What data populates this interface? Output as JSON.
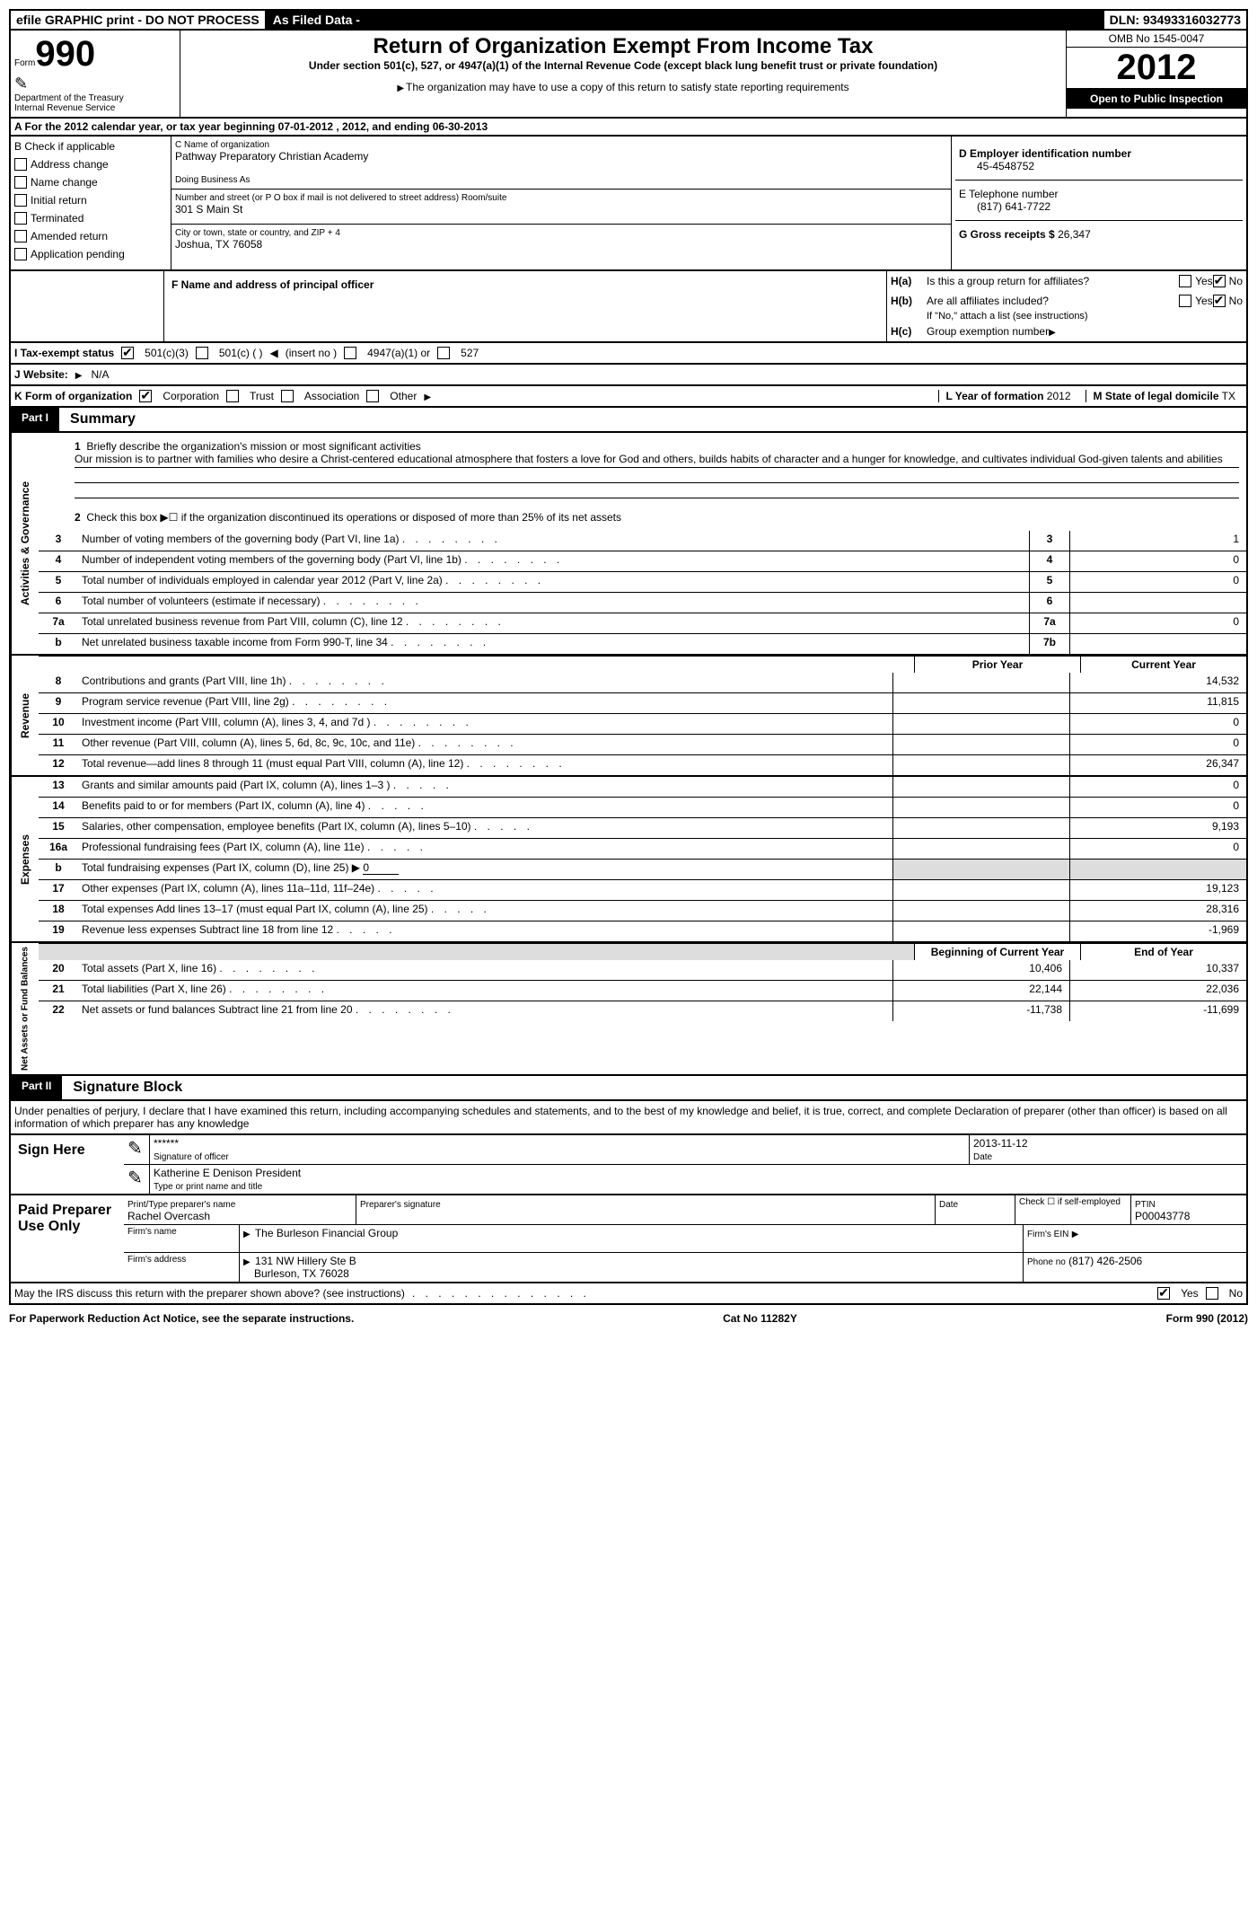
{
  "header": {
    "efile": "efile GRAPHIC print - DO NOT PROCESS",
    "asFiled": "As Filed Data -",
    "dln": "DLN: 93493316032773"
  },
  "topLeft": {
    "formLabel": "Form",
    "formNum": "990",
    "dept1": "Department of the Treasury",
    "dept2": "Internal Revenue Service"
  },
  "topCenter": {
    "title": "Return of Organization Exempt From Income Tax",
    "sub1": "Under section 501(c), 527, or 4947(a)(1) of the Internal Revenue Code (except black lung benefit trust or private foundation)",
    "sub2": "The organization may have to use a copy of this return to satisfy state reporting requirements"
  },
  "topRight": {
    "omb": "OMB No 1545-0047",
    "year": "2012",
    "open": "Open to Public Inspection"
  },
  "sectionA": "A  For the 2012 calendar year, or tax year beginning 07-01-2012    , 2012, and ending 06-30-2013",
  "colB": {
    "label": "B  Check if applicable",
    "items": [
      "Address change",
      "Name change",
      "Initial return",
      "Terminated",
      "Amended return",
      "Application pending"
    ]
  },
  "colC": {
    "nameLabel": "C Name of organization",
    "name": "Pathway Preparatory Christian Academy",
    "dbaLabel": "Doing Business As",
    "dba": "",
    "streetLabel": "Number and street (or P O  box if mail is not delivered to street address)  Room/suite",
    "street": "301 S Main St",
    "cityLabel": "City or town, state or country, and ZIP + 4",
    "city": "Joshua, TX  76058",
    "fLabel": "F  Name and address of principal officer"
  },
  "colD": {
    "einLabel": "D Employer identification number",
    "ein": "45-4548752",
    "telLabel": "E Telephone number",
    "tel": "(817) 641-7722",
    "grossLabel": "G Gross receipts $",
    "gross": "26,347"
  },
  "colH": {
    "haLabel": "H(a)",
    "haText": "Is this a group return for affiliates?",
    "hbLabel": "H(b)",
    "hbText": "Are all affiliates included?",
    "hbNote": "If \"No,\" attach a list  (see instructions)",
    "hcLabel": "H(c)",
    "hcText": "Group exemption number"
  },
  "rowI": {
    "label": "I  Tax-exempt status",
    "opts": [
      "501(c)(3)",
      "501(c) (  )",
      "(insert no )",
      "4947(a)(1) or",
      "527"
    ]
  },
  "rowJ": {
    "label": "J  Website:",
    "val": "N/A"
  },
  "rowK": {
    "label": "K Form of organization",
    "opts": [
      "Corporation",
      "Trust",
      "Association",
      "Other"
    ],
    "yearLabel": "L Year of formation",
    "year": "2012",
    "stateLabel": "M State of legal domicile",
    "state": "TX"
  },
  "part1": {
    "tab": "Part I",
    "title": "Summary"
  },
  "summary": {
    "l1": "Briefly describe the organization's mission or most significant activities",
    "l1text": "Our mission is to partner with families who desire a Christ-centered educational atmosphere that fosters a love for God and others, builds habits of character and a hunger for knowledge, and cultivates individual God-given talents and abilities",
    "l2": "Check this box ▶☐ if the organization discontinued its operations or disposed of more than 25% of its net assets",
    "lines_gov": [
      {
        "n": "3",
        "d": "Number of voting members of the governing body (Part VI, line 1a)",
        "b": "3",
        "v": "1"
      },
      {
        "n": "4",
        "d": "Number of independent voting members of the governing body (Part VI, line 1b)",
        "b": "4",
        "v": "0"
      },
      {
        "n": "5",
        "d": "Total number of individuals employed in calendar year 2012 (Part V, line 2a)",
        "b": "5",
        "v": "0"
      },
      {
        "n": "6",
        "d": "Total number of volunteers (estimate if necessary)",
        "b": "6",
        "v": ""
      },
      {
        "n": "7a",
        "d": "Total unrelated business revenue from Part VIII, column (C), line 12",
        "b": "7a",
        "v": "0"
      },
      {
        "n": "b",
        "d": "Net unrelated business taxable income from Form 990-T, line 34",
        "b": "7b",
        "v": ""
      }
    ],
    "header_py": "Prior Year",
    "header_cy": "Current Year",
    "lines_rev": [
      {
        "n": "8",
        "d": "Contributions and grants (Part VIII, line 1h)",
        "p": "",
        "c": "14,532"
      },
      {
        "n": "9",
        "d": "Program service revenue (Part VIII, line 2g)",
        "p": "",
        "c": "11,815"
      },
      {
        "n": "10",
        "d": "Investment income (Part VIII, column (A), lines 3, 4, and 7d )",
        "p": "",
        "c": "0"
      },
      {
        "n": "11",
        "d": "Other revenue (Part VIII, column (A), lines 5, 6d, 8c, 9c, 10c, and 11e)",
        "p": "",
        "c": "0"
      },
      {
        "n": "12",
        "d": "Total revenue—add lines 8 through 11 (must equal Part VIII, column (A), line 12)",
        "p": "",
        "c": "26,347"
      }
    ],
    "lines_exp": [
      {
        "n": "13",
        "d": "Grants and similar amounts paid (Part IX, column (A), lines 1–3 )",
        "p": "",
        "c": "0"
      },
      {
        "n": "14",
        "d": "Benefits paid to or for members (Part IX, column (A), line 4)",
        "p": "",
        "c": "0"
      },
      {
        "n": "15",
        "d": "Salaries, other compensation, employee benefits (Part IX, column (A), lines 5–10)",
        "p": "",
        "c": "9,193"
      },
      {
        "n": "16a",
        "d": "Professional fundraising fees (Part IX, column (A), line 11e)",
        "p": "",
        "c": "0"
      },
      {
        "n": "b",
        "d": "Total fundraising expenses (Part IX, column (D), line 25) ▶",
        "p": "gray",
        "c": "gray"
      },
      {
        "n": "17",
        "d": "Other expenses (Part IX, column (A), lines 11a–11d, 11f–24e)",
        "p": "",
        "c": "19,123"
      },
      {
        "n": "18",
        "d": "Total expenses  Add lines 13–17 (must equal Part IX, column (A), line 25)",
        "p": "",
        "c": "28,316"
      },
      {
        "n": "19",
        "d": "Revenue less expenses  Subtract line 18 from line 12",
        "p": "",
        "c": "-1,969"
      }
    ],
    "header_boy": "Beginning of Current Year",
    "header_eoy": "End of Year",
    "lines_net": [
      {
        "n": "20",
        "d": "Total assets (Part X, line 16)",
        "p": "10,406",
        "c": "10,337"
      },
      {
        "n": "21",
        "d": "Total liabilities (Part X, line 26)",
        "p": "22,144",
        "c": "22,036"
      },
      {
        "n": "22",
        "d": "Net assets or fund balances  Subtract line 21 from line 20",
        "p": "-11,738",
        "c": "-11,699"
      }
    ],
    "side1": "Activities & Governance",
    "side2": "Revenue",
    "side3": "Expenses",
    "side4": "Net Assets or Fund Balances"
  },
  "part2": {
    "tab": "Part II",
    "title": "Signature Block"
  },
  "sig": {
    "declaration": "Under penalties of perjury, I declare that I have examined this return, including accompanying schedules and statements, and to the best of my knowledge and belief, it is true, correct, and complete  Declaration of preparer (other than officer) is based on all information of which preparer has any knowledge",
    "signHere": "Sign Here",
    "stars": "******",
    "sigOfficer": "Signature of officer",
    "date": "Date",
    "sigDate": "2013-11-12",
    "officer": "Katherine E Denison President",
    "typeName": "Type or print name and title",
    "paid": "Paid Preparer Use Only",
    "prepName": "Print/Type preparer's name",
    "prepNameVal": "Rachel Overcash",
    "prepSig": "Preparer's signature",
    "checkSelf": "Check ☐ if self-employed",
    "ptin": "PTIN",
    "ptinVal": "P00043778",
    "firmName": "Firm's name",
    "firmNameVal": "The Burleson Financial Group",
    "firmEin": "Firm's EIN",
    "firmAddr": "Firm's address",
    "firmAddrVal1": "131 NW Hillery Ste B",
    "firmAddrVal2": "Burleson, TX  76028",
    "phone": "Phone no",
    "phoneVal": "(817) 426-2506",
    "discuss": "May the IRS discuss this return with the preparer shown above? (see instructions)",
    "yes": "Yes",
    "no": "No"
  },
  "footer": {
    "left": "For Paperwork Reduction Act Notice, see the separate instructions.",
    "mid": "Cat No  11282Y",
    "right": "Form 990 (2012)"
  }
}
